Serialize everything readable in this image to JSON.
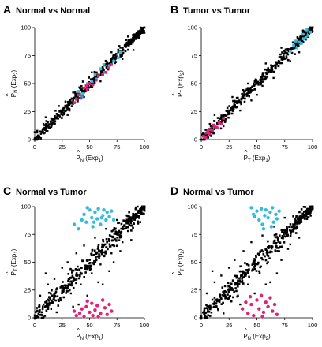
{
  "colors": {
    "background": "#ffffff",
    "main_points": "#000000",
    "blue_points": "#33bbdd",
    "pink_points": "#dd2277"
  },
  "chart_data": [
    {
      "type": "scatter",
      "panel_letter": "A",
      "title": "Normal vs Normal",
      "xlabel": {
        "symbol": "P",
        "sub": "N",
        "rest": " (Exp",
        "expsub": "1",
        "close": ")"
      },
      "ylabel": {
        "symbol": "P",
        "sub": "N",
        "rest": " (Exp",
        "expsub": "2",
        "close": ")"
      },
      "xlim": [
        0,
        100
      ],
      "ylim": [
        0,
        100
      ],
      "x_ticks": [
        "0",
        "25",
        "50",
        "75",
        "100"
      ],
      "y_ticks": [
        "0",
        "25",
        "50",
        "75",
        "100"
      ],
      "diag_spread": 3.5,
      "series": [
        {
          "color_key": "blue_points",
          "marker": "square",
          "x": [
            40,
            44,
            48,
            52,
            56,
            60,
            64,
            68,
            72,
            76,
            78,
            43,
            55,
            63
          ],
          "y": [
            43,
            41,
            50,
            52,
            54,
            63,
            60,
            66,
            70,
            73,
            78,
            38,
            58,
            67
          ]
        },
        {
          "color_key": "pink_points",
          "marker": "square",
          "x": [
            36,
            40,
            42,
            45,
            48,
            50,
            53,
            56,
            58,
            62,
            65,
            67,
            70,
            38,
            47
          ],
          "y": [
            33,
            40,
            37,
            46,
            45,
            50,
            49,
            53,
            57,
            58,
            60,
            64,
            67,
            36,
            48
          ]
        }
      ],
      "outliers": {
        "x": [
          10,
          15,
          22,
          30,
          35,
          45,
          52,
          60,
          70,
          80,
          85,
          90,
          8,
          28
        ],
        "y": [
          20,
          12,
          30,
          22,
          42,
          38,
          60,
          52,
          78,
          72,
          92,
          80,
          14,
          34
        ]
      }
    },
    {
      "type": "scatter",
      "panel_letter": "B",
      "title": "Tumor vs Tumor",
      "xlabel": {
        "symbol": "P",
        "sub": "T",
        "rest": " (Exp",
        "expsub": "1",
        "close": ")"
      },
      "ylabel": {
        "symbol": "P",
        "sub": "T",
        "rest": " (Exp",
        "expsub": "2",
        "close": ")"
      },
      "xlim": [
        0,
        100
      ],
      "ylim": [
        0,
        100
      ],
      "x_ticks": [
        "0",
        "25",
        "50",
        "75",
        "100"
      ],
      "y_ticks": [
        "0",
        "25",
        "50",
        "75",
        "100"
      ],
      "diag_spread": 3.5,
      "series": [
        {
          "color_key": "blue_points",
          "marker": "square",
          "x": [
            80,
            83,
            86,
            88,
            90,
            92,
            94,
            96,
            98,
            85,
            91,
            95
          ],
          "y": [
            79,
            84,
            82,
            87,
            86,
            90,
            91,
            93,
            96,
            88,
            94,
            98
          ]
        },
        {
          "color_key": "pink_points",
          "marker": "square",
          "x": [
            2,
            4,
            5,
            7,
            8,
            10,
            12,
            14,
            16,
            18,
            20,
            6,
            11
          ],
          "y": [
            3,
            2,
            6,
            5,
            9,
            8,
            12,
            11,
            15,
            14,
            19,
            8,
            13
          ]
        }
      ],
      "outliers": {
        "x": [
          12,
          20,
          28,
          35,
          42,
          50,
          58,
          65,
          72,
          80,
          88,
          45,
          55
        ],
        "y": [
          22,
          12,
          38,
          26,
          50,
          40,
          68,
          55,
          82,
          70,
          78,
          35,
          48
        ]
      }
    },
    {
      "type": "scatter",
      "panel_letter": "C",
      "title": "Normal vs Tumor",
      "xlabel": {
        "symbol": "P",
        "sub": "N",
        "rest": " (Exp",
        "expsub": "1",
        "close": ")"
      },
      "ylabel": {
        "symbol": "P",
        "sub": "T",
        "rest": " (Exp",
        "expsub": "1",
        "close": ")"
      },
      "xlim": [
        0,
        100
      ],
      "ylim": [
        0,
        100
      ],
      "x_ticks": [
        "0",
        "25",
        "50",
        "75",
        "100"
      ],
      "y_ticks": [
        "0",
        "25",
        "50",
        "75",
        "100"
      ],
      "diag_spread": 6,
      "series": [
        {
          "color_key": "blue_points",
          "marker": "circle",
          "x": [
            36,
            40,
            43,
            45,
            47,
            50,
            52,
            53,
            55,
            57,
            58,
            60,
            62,
            63,
            65,
            66,
            68,
            70,
            72,
            48,
            54,
            61
          ],
          "y": [
            84,
            80,
            88,
            93,
            86,
            97,
            90,
            82,
            95,
            89,
            98,
            84,
            92,
            97,
            88,
            95,
            91,
            96,
            88,
            99,
            86,
            90
          ]
        },
        {
          "color_key": "pink_points",
          "marker": "circle",
          "x": [
            36,
            38,
            41,
            43,
            45,
            47,
            50,
            52,
            53,
            55,
            57,
            60,
            62,
            64,
            66,
            68,
            70,
            48,
            58
          ],
          "y": [
            6,
            2,
            4,
            8,
            1,
            10,
            5,
            13,
            2,
            7,
            11,
            4,
            16,
            9,
            3,
            12,
            6,
            15,
            1
          ]
        }
      ],
      "outliers": {
        "x": [
          5,
          8,
          12,
          15,
          18,
          22,
          25,
          28,
          30,
          33,
          38,
          42,
          45,
          52,
          55,
          60,
          65,
          70,
          75,
          80,
          85,
          90,
          20,
          35,
          48,
          58,
          68,
          78,
          88,
          10,
          40,
          62,
          72
        ],
        "y": [
          20,
          12,
          30,
          8,
          35,
          15,
          45,
          28,
          50,
          22,
          58,
          30,
          65,
          40,
          72,
          48,
          80,
          58,
          88,
          68,
          78,
          85,
          5,
          10,
          20,
          32,
          42,
          60,
          70,
          40,
          12,
          30,
          50
        ]
      }
    },
    {
      "type": "scatter",
      "panel_letter": "D",
      "title": "Normal vs Tumor",
      "xlabel": {
        "symbol": "P",
        "sub": "N",
        "rest": " (Exp",
        "expsub": "2",
        "close": ")"
      },
      "ylabel": {
        "symbol": "P",
        "sub": "T",
        "rest": " (Exp",
        "expsub": "2",
        "close": ")"
      },
      "xlim": [
        0,
        100
      ],
      "ylim": [
        0,
        100
      ],
      "x_ticks": [
        "0",
        "25",
        "50",
        "75",
        "100"
      ],
      "y_ticks": [
        "0",
        "25",
        "50",
        "75",
        "100"
      ],
      "diag_spread": 6,
      "series": [
        {
          "color_key": "blue_points",
          "marker": "circle",
          "x": [
            45,
            47,
            50,
            52,
            54,
            55,
            57,
            58,
            60,
            62,
            64,
            65,
            67,
            68,
            70,
            48,
            56,
            63
          ],
          "y": [
            99,
            93,
            96,
            88,
            98,
            84,
            92,
            97,
            90,
            95,
            99,
            86,
            93,
            89,
            96,
            91,
            80,
            82
          ]
        },
        {
          "color_key": "pink_points",
          "marker": "circle",
          "x": [
            37,
            40,
            42,
            45,
            47,
            50,
            52,
            54,
            56,
            58,
            60,
            62,
            64,
            66,
            68,
            44,
            55
          ],
          "y": [
            8,
            14,
            4,
            12,
            2,
            16,
            8,
            20,
            5,
            14,
            10,
            18,
            6,
            12,
            3,
            19,
            1
          ]
        }
      ],
      "outliers": {
        "x": [
          5,
          8,
          12,
          15,
          18,
          22,
          25,
          28,
          30,
          33,
          38,
          42,
          45,
          52,
          55,
          60,
          65,
          70,
          75,
          80,
          85,
          90,
          20,
          35,
          48,
          58,
          68,
          78,
          88,
          10,
          40,
          62,
          72
        ],
        "y": [
          22,
          10,
          32,
          8,
          38,
          18,
          45,
          25,
          52,
          20,
          60,
          30,
          68,
          42,
          74,
          50,
          82,
          60,
          90,
          66,
          80,
          86,
          4,
          12,
          22,
          30,
          40,
          62,
          72,
          42,
          14,
          32,
          52
        ]
      }
    }
  ]
}
